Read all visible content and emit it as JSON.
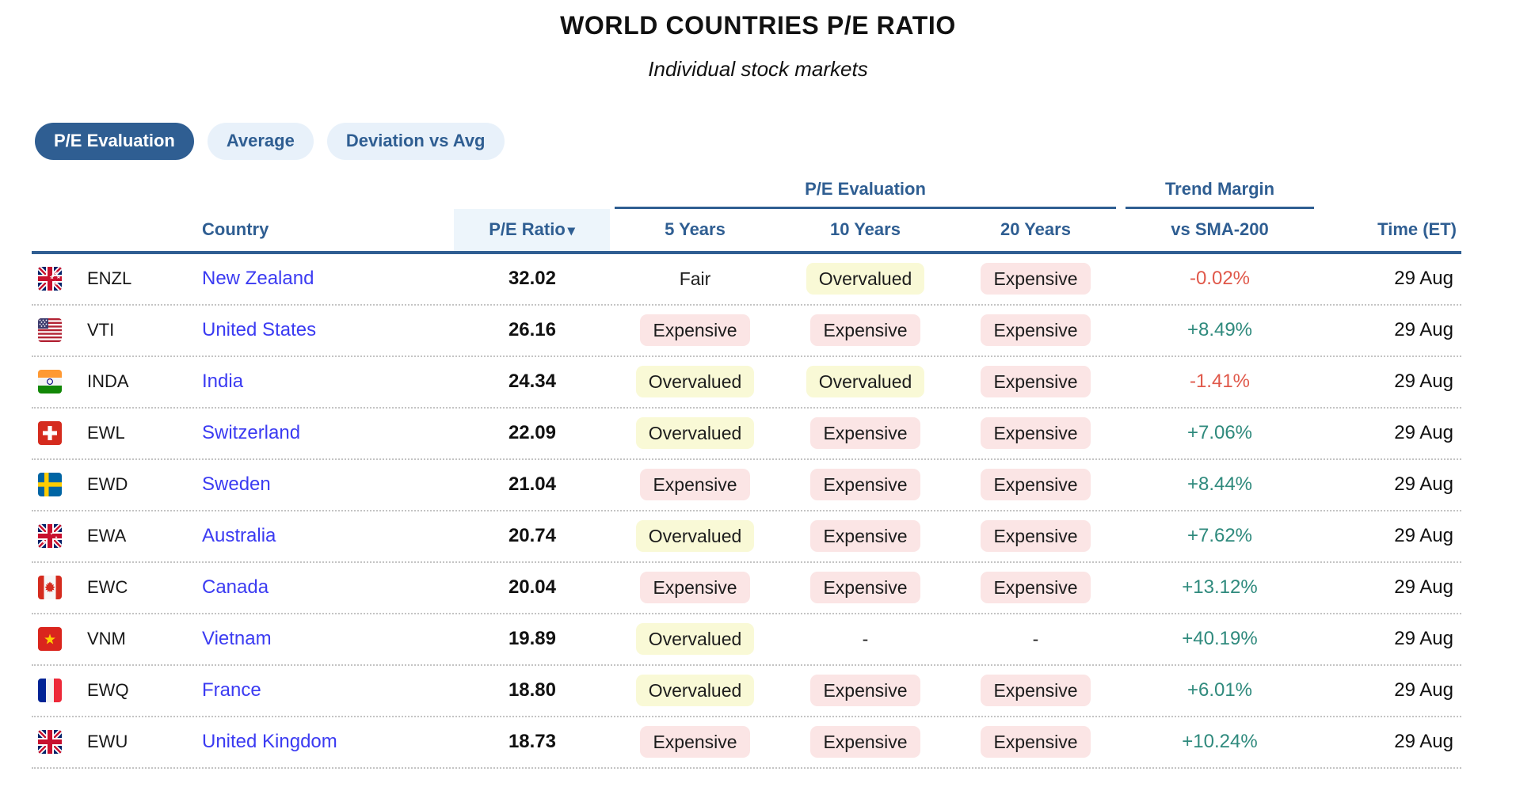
{
  "page": {
    "title": "WORLD COUNTRIES P/E RATIO",
    "subtitle": "Individual stock markets"
  },
  "tabs": [
    {
      "label": "P/E Evaluation",
      "active": true
    },
    {
      "label": "Average",
      "active": false
    },
    {
      "label": "Deviation vs Avg",
      "active": false
    }
  ],
  "table": {
    "group_headers": {
      "pe_evaluation": "P/E Evaluation",
      "trend_margin": "Trend Margin"
    },
    "columns": {
      "country": "Country",
      "pe_ratio": "P/E Ratio",
      "sort_icon": "▾",
      "y5": "5 Years",
      "y10": "10 Years",
      "y20": "20 Years",
      "sma": "vs SMA-200",
      "time": "Time (ET)"
    },
    "rows": [
      {
        "flag": "nz",
        "ticker": "ENZL",
        "country": "New Zealand",
        "pe": "32.02",
        "y5": "Fair",
        "y10": "Overvalued",
        "y20": "Expensive",
        "sma": "-0.02%",
        "time": "29 Aug"
      },
      {
        "flag": "us",
        "ticker": "VTI",
        "country": "United States",
        "pe": "26.16",
        "y5": "Expensive",
        "y10": "Expensive",
        "y20": "Expensive",
        "sma": "+8.49%",
        "time": "29 Aug"
      },
      {
        "flag": "in",
        "ticker": "INDA",
        "country": "India",
        "pe": "24.34",
        "y5": "Overvalued",
        "y10": "Overvalued",
        "y20": "Expensive",
        "sma": "-1.41%",
        "time": "29 Aug"
      },
      {
        "flag": "ch",
        "ticker": "EWL",
        "country": "Switzerland",
        "pe": "22.09",
        "y5": "Overvalued",
        "y10": "Expensive",
        "y20": "Expensive",
        "sma": "+7.06%",
        "time": "29 Aug"
      },
      {
        "flag": "se",
        "ticker": "EWD",
        "country": "Sweden",
        "pe": "21.04",
        "y5": "Expensive",
        "y10": "Expensive",
        "y20": "Expensive",
        "sma": "+8.44%",
        "time": "29 Aug"
      },
      {
        "flag": "au",
        "ticker": "EWA",
        "country": "Australia",
        "pe": "20.74",
        "y5": "Overvalued",
        "y10": "Expensive",
        "y20": "Expensive",
        "sma": "+7.62%",
        "time": "29 Aug"
      },
      {
        "flag": "ca",
        "ticker": "EWC",
        "country": "Canada",
        "pe": "20.04",
        "y5": "Expensive",
        "y10": "Expensive",
        "y20": "Expensive",
        "sma": "+13.12%",
        "time": "29 Aug"
      },
      {
        "flag": "vn",
        "ticker": "VNM",
        "country": "Vietnam",
        "pe": "19.89",
        "y5": "Overvalued",
        "y10": "-",
        "y20": "-",
        "sma": "+40.19%",
        "time": "29 Aug"
      },
      {
        "flag": "fr",
        "ticker": "EWQ",
        "country": "France",
        "pe": "18.80",
        "y5": "Overvalued",
        "y10": "Expensive",
        "y20": "Expensive",
        "sma": "+6.01%",
        "time": "29 Aug"
      },
      {
        "flag": "gb",
        "ticker": "EWU",
        "country": "United Kingdom",
        "pe": "18.73",
        "y5": "Expensive",
        "y10": "Expensive",
        "y20": "Expensive",
        "sma": "+10.24%",
        "time": "29 Aug"
      }
    ]
  },
  "colors": {
    "accent_blue": "#2f5e92",
    "tab_inactive_bg": "#e8f1fa",
    "pe_header_bg": "#edf5fb",
    "link_blue": "#3b3bf2",
    "badge_overvalued_bg": "#f9f9d6",
    "badge_expensive_bg": "#fbe5e5",
    "positive_green": "#2f8a7d",
    "negative_red": "#e0584a"
  }
}
